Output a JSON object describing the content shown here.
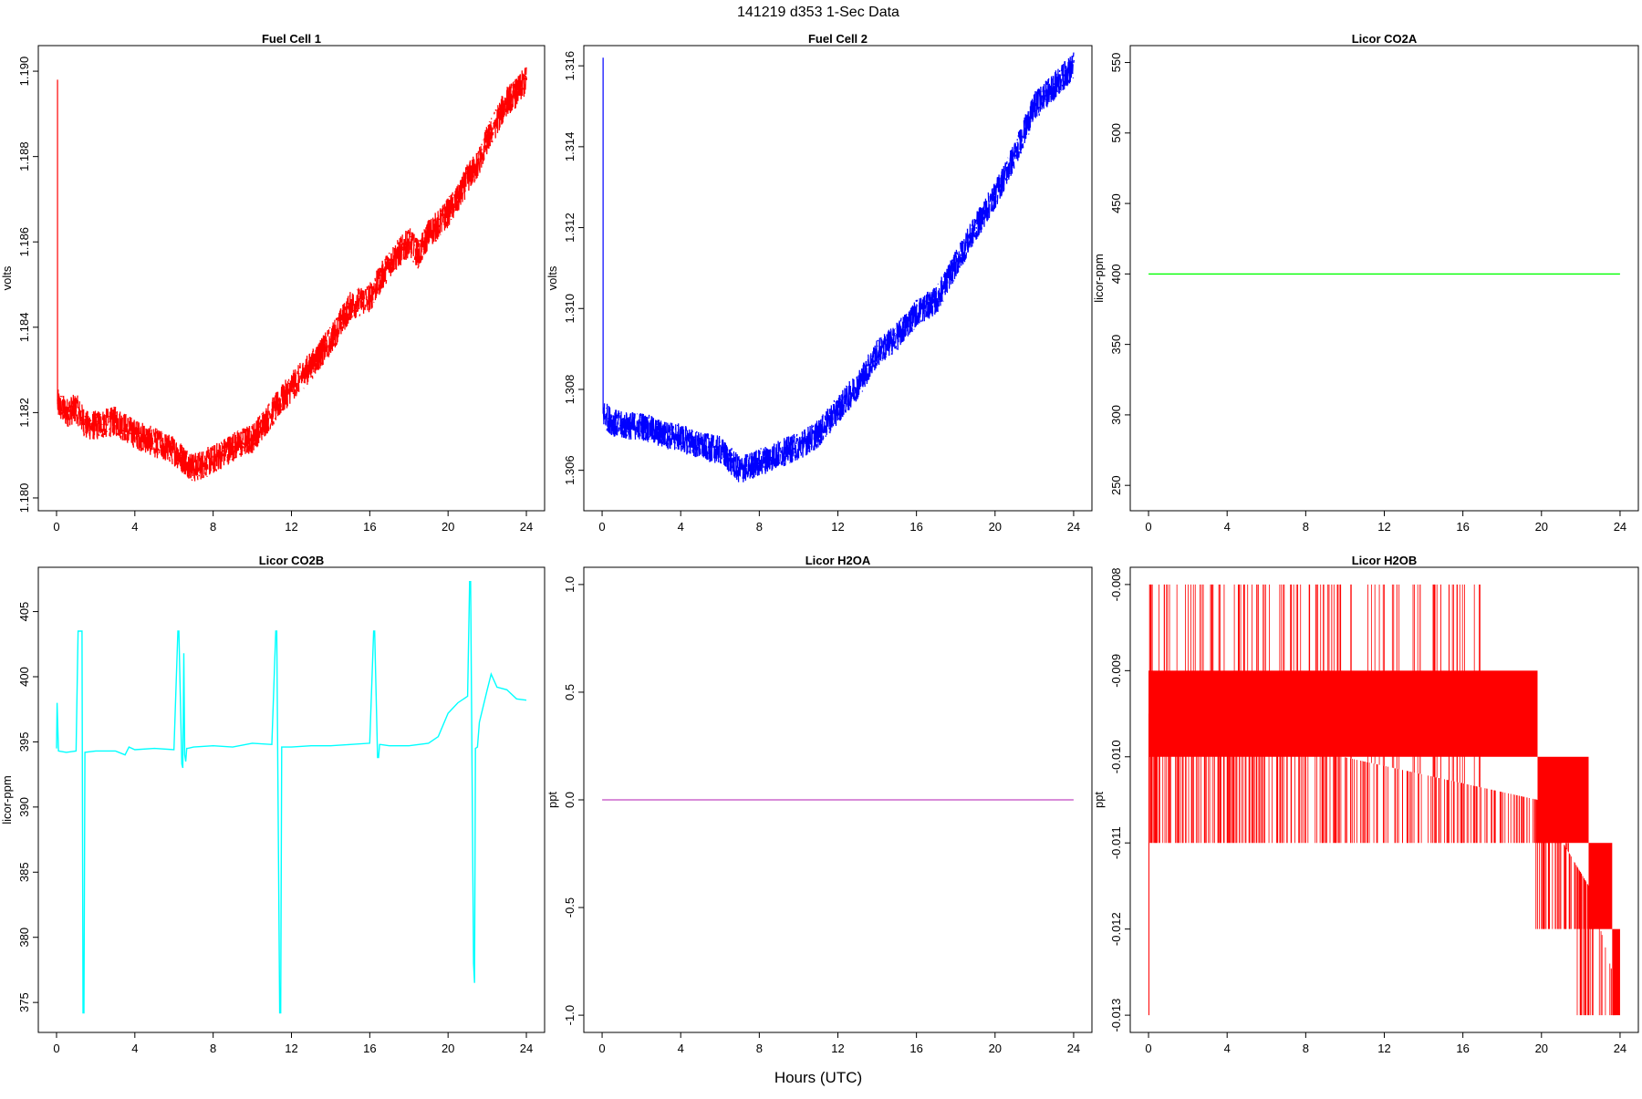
{
  "page": {
    "title": "141219   d353   1-Sec Data",
    "xlabel": "Hours (UTC)"
  },
  "chart_data": [
    {
      "type": "line",
      "title": "Fuel Cell 1",
      "ylabel": "volts",
      "color": "#ff0000",
      "xlim": [
        0,
        24
      ],
      "ylim": [
        1.1797,
        1.1906
      ],
      "xticks": [
        0,
        4,
        8,
        12,
        16,
        20,
        24
      ],
      "yticks": [
        1.18,
        1.182,
        1.184,
        1.186,
        1.188,
        1.19
      ],
      "ytick_decimals": 3,
      "series": [
        {
          "style": "noisy-band",
          "band_width": 0.0007,
          "spike": {
            "x": 0.05,
            "y": 1.1898
          },
          "x": [
            0.05,
            0.5,
            1,
            1.5,
            2,
            3,
            4,
            5,
            6,
            7,
            8,
            9,
            10,
            11,
            12,
            13,
            14,
            15,
            16,
            17,
            18,
            18.5,
            19,
            19.5,
            20,
            20.5,
            21,
            21.5,
            22,
            23,
            23.5,
            24
          ],
          "y": [
            1.1822,
            1.182,
            1.1821,
            1.1817,
            1.1817,
            1.1818,
            1.1815,
            1.1813,
            1.1811,
            1.1807,
            1.1809,
            1.1812,
            1.1814,
            1.182,
            1.1826,
            1.1831,
            1.1837,
            1.1845,
            1.1847,
            1.1855,
            1.186,
            1.1857,
            1.1862,
            1.1864,
            1.1867,
            1.187,
            1.1875,
            1.1878,
            1.1884,
            1.1893,
            1.1895,
            1.1898
          ]
        }
      ]
    },
    {
      "type": "line",
      "title": "Fuel Cell 2",
      "ylabel": "volts",
      "color": "#0000ff",
      "xlim": [
        0,
        24
      ],
      "ylim": [
        1.305,
        1.3165
      ],
      "xticks": [
        0,
        4,
        8,
        12,
        16,
        20,
        24
      ],
      "yticks": [
        1.306,
        1.308,
        1.31,
        1.312,
        1.314,
        1.316
      ],
      "ytick_decimals": 3,
      "series": [
        {
          "style": "noisy-band",
          "band_width": 0.0007,
          "spike": {
            "x": 0.05,
            "y": 1.3162
          },
          "x": [
            0.05,
            0.5,
            1,
            2,
            3,
            4,
            5,
            6,
            7,
            8,
            9,
            10,
            11,
            12,
            13,
            14,
            15,
            16,
            17,
            18,
            19,
            20,
            21,
            22,
            23,
            24
          ],
          "y": [
            1.3074,
            1.3072,
            1.3071,
            1.3071,
            1.3069,
            1.3068,
            1.3066,
            1.3065,
            1.306,
            1.3062,
            1.3064,
            1.3066,
            1.3069,
            1.3075,
            1.3081,
            1.3089,
            1.3093,
            1.3099,
            1.3102,
            1.3111,
            1.312,
            1.3128,
            1.3138,
            1.315,
            1.3155,
            1.316
          ]
        }
      ]
    },
    {
      "type": "line",
      "title": "Licor CO2A",
      "ylabel": "licor-ppm",
      "color": "#00ff00",
      "xlim": [
        0,
        24
      ],
      "ylim": [
        232,
        562
      ],
      "xticks": [
        0,
        4,
        8,
        12,
        16,
        20,
        24
      ],
      "yticks": [
        250,
        300,
        350,
        400,
        450,
        500,
        550
      ],
      "ytick_decimals": 0,
      "series": [
        {
          "style": "line",
          "x": [
            0,
            24
          ],
          "y": [
            400,
            400
          ]
        }
      ]
    },
    {
      "type": "line",
      "title": "Licor CO2B",
      "ylabel": "licor-ppm",
      "color": "#00ffff",
      "xlim": [
        0,
        24
      ],
      "ylim": [
        372.7,
        408.4
      ],
      "xticks": [
        0,
        4,
        8,
        12,
        16,
        20,
        24
      ],
      "yticks": [
        375,
        380,
        385,
        390,
        395,
        400,
        405
      ],
      "ytick_decimals": 0,
      "series": [
        {
          "style": "line",
          "x": [
            0,
            0.03,
            0.1,
            0.5,
            1.0,
            1.1,
            1.15,
            1.3,
            1.35,
            1.4,
            1.45,
            2.0,
            3.0,
            3.5,
            3.7,
            4.0,
            5.0,
            6.0,
            6.2,
            6.25,
            6.4,
            6.45,
            6.5,
            6.55,
            6.6,
            6.65,
            6.7,
            7.0,
            8.0,
            9.0,
            10.0,
            11.0,
            11.2,
            11.25,
            11.4,
            11.45,
            11.5,
            12.0,
            13.0,
            14.0,
            15.0,
            16.0,
            16.2,
            16.25,
            16.4,
            16.45,
            16.5,
            16.55,
            17.0,
            18.0,
            19.0,
            19.5,
            20.0,
            20.5,
            21.0,
            21.1,
            21.15,
            21.3,
            21.35,
            21.4,
            21.5,
            21.6,
            22.0,
            22.2,
            22.5,
            23.0,
            23.5,
            24.0
          ],
          "y": [
            394.5,
            398.0,
            394.3,
            394.2,
            394.3,
            403.5,
            403.5,
            403.5,
            374.2,
            374.2,
            394.2,
            394.3,
            394.3,
            394.0,
            394.6,
            394.4,
            394.5,
            394.4,
            403.5,
            403.5,
            393.3,
            393.0,
            401.8,
            394.0,
            393.5,
            394.5,
            394.5,
            394.6,
            394.7,
            394.6,
            394.9,
            394.8,
            403.5,
            403.5,
            374.2,
            374.2,
            394.6,
            394.6,
            394.7,
            394.7,
            394.8,
            394.9,
            403.5,
            403.5,
            393.8,
            393.8,
            394.8,
            394.8,
            394.7,
            394.7,
            394.9,
            395.4,
            397.2,
            398.0,
            398.5,
            407.3,
            407.3,
            378.0,
            376.5,
            394.5,
            394.6,
            396.5,
            399.0,
            400.2,
            399.2,
            399.0,
            398.3,
            398.2
          ]
        }
      ]
    },
    {
      "type": "line",
      "title": "Licor H2OA",
      "ylabel": "ppt",
      "color": "#cc66cc",
      "xlim": [
        0,
        24
      ],
      "ylim": [
        -1.08,
        1.08
      ],
      "xticks": [
        0,
        4,
        8,
        12,
        16,
        20,
        24
      ],
      "yticks": [
        -1.0,
        -0.5,
        0.0,
        0.5,
        1.0
      ],
      "ytick_decimals": 1,
      "series": [
        {
          "style": "line",
          "x": [
            0,
            24
          ],
          "y": [
            0,
            0
          ]
        }
      ]
    },
    {
      "type": "line",
      "title": "Licor H2OB",
      "ylabel": "ppt",
      "color": "#ff0000",
      "xlim": [
        0,
        24
      ],
      "ylim": [
        -0.0132,
        -0.0078
      ],
      "xticks": [
        0,
        4,
        8,
        12,
        16,
        20,
        24
      ],
      "yticks": [
        -0.013,
        -0.012,
        -0.011,
        -0.01,
        -0.009,
        -0.008
      ],
      "ytick_decimals": 3,
      "series": [
        {
          "style": "step-fill",
          "levels": [
            {
              "x0": 0,
              "x1": 19.8,
              "y0": -0.01,
              "y1": -0.009
            },
            {
              "x0": 19.8,
              "x1": 22.4,
              "y0": -0.011,
              "y1": -0.01
            },
            {
              "x0": 22.4,
              "x1": 23.6,
              "y0": -0.012,
              "y1": -0.011
            },
            {
              "x0": 23.6,
              "x1": 24,
              "y0": -0.013,
              "y1": -0.012
            }
          ],
          "spikes": [
            {
              "x0": 0,
              "x1": 17.0,
              "y": -0.008,
              "count": 120
            },
            {
              "x0": 0,
              "x1": 21.6,
              "y": -0.011,
              "count": 320
            },
            {
              "x0": 19.7,
              "x1": 22.8,
              "y": -0.012,
              "count": 60
            },
            {
              "x0": 21.8,
              "x1": 23.8,
              "y": -0.013,
              "count": 25
            }
          ],
          "extreme": {
            "x": 0.02,
            "y": -0.013
          }
        }
      ]
    }
  ]
}
